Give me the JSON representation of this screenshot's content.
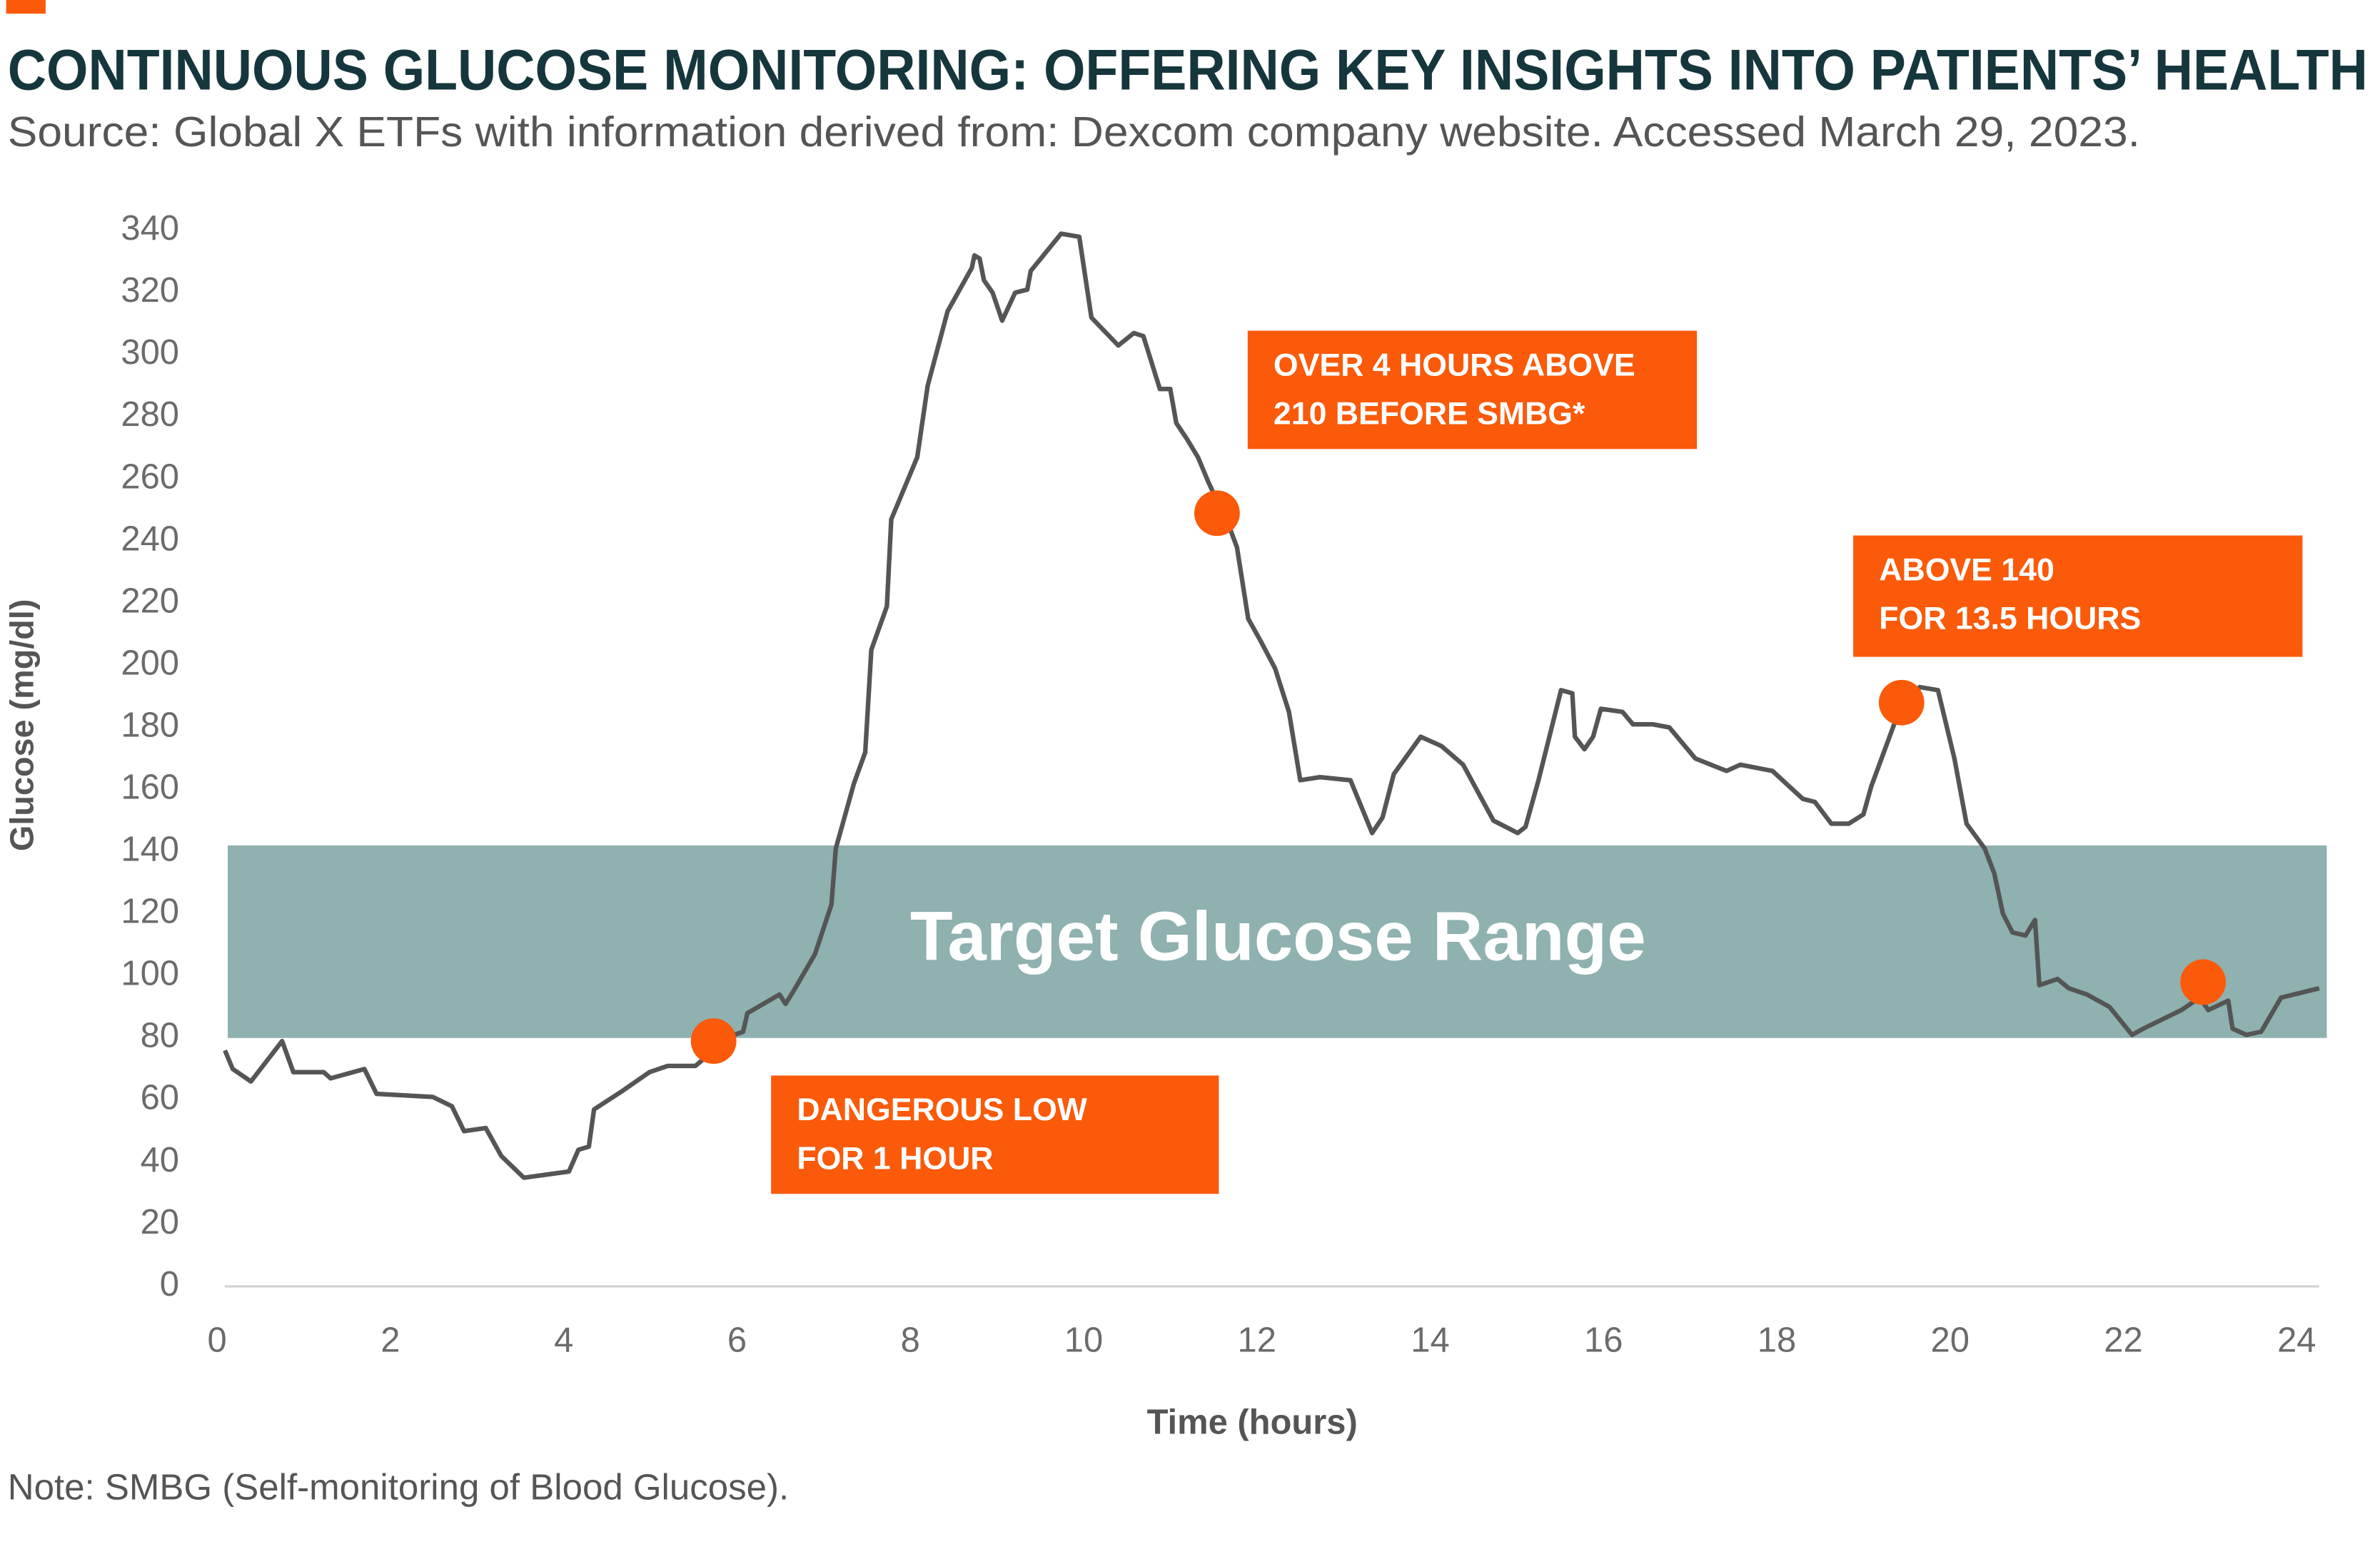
{
  "chart_data": {
    "type": "line",
    "title": "CONTINUOUS GLUCOSE MONITORING: OFFERING KEY INSIGHTS INTO PATIENTS’ HEALTH",
    "subtitle": "Source: Global X ETFs with information derived from: Dexcom company website. Accessed March 29, 2023.",
    "note": "Note: SMBG (Self-monitoring of Blood Glucose).",
    "x_label": "Time (hours)",
    "y_label": "Glucose (mg/dl)",
    "xlim": [
      0,
      24.26
    ],
    "ylim": [
      0,
      340
    ],
    "xticks": [
      0,
      2,
      4,
      6,
      8,
      10,
      12,
      14,
      16,
      18,
      20,
      22,
      24
    ],
    "yticks": [
      0,
      20,
      40,
      60,
      80,
      100,
      120,
      140,
      160,
      180,
      200,
      220,
      240,
      260,
      280,
      300,
      320,
      340
    ],
    "target_range": [
      80,
      142
    ],
    "target_label": "Target Glucose Range",
    "target_color": "#8fb1b0",
    "series": [
      {
        "color": "#555555",
        "x": [
          0.09,
          0.18,
          0.39,
          0.75,
          0.88,
          1.23,
          1.31,
          1.7,
          1.84,
          2.49,
          2.71,
          2.85,
          3.1,
          3.28,
          3.54,
          4.06,
          4.17,
          4.29,
          4.35,
          4.68,
          4.99,
          5.2,
          5.52,
          5.73,
          5.97,
          6.07,
          6.12,
          6.49,
          6.56,
          6.65,
          6.9,
          7.09,
          7.14,
          7.35,
          7.48,
          7.55,
          7.73,
          7.78,
          8.08,
          8.2,
          8.43,
          8.71,
          8.74,
          8.8,
          8.85,
          8.95,
          9.06,
          9.21,
          9.35,
          9.39,
          9.74,
          9.95,
          10.09,
          10.4,
          10.58,
          10.69,
          10.88,
          11.0,
          11.07,
          11.19,
          11.32,
          11.44,
          11.69,
          11.77,
          11.9,
          12.04,
          12.21,
          12.37,
          12.5,
          12.73,
          13.08,
          13.33,
          13.45,
          13.58,
          13.89,
          14.13,
          14.38,
          14.73,
          15.01,
          15.1,
          15.25,
          15.51,
          15.64,
          15.67,
          15.78,
          15.88,
          15.97,
          16.22,
          16.34,
          16.57,
          16.76,
          17.06,
          17.42,
          17.58,
          17.95,
          18.3,
          18.44,
          18.63,
          18.83,
          19.0,
          19.09,
          19.42,
          19.65,
          19.86,
          20.05,
          20.19,
          20.4,
          20.51,
          20.61,
          20.72,
          20.87,
          20.98,
          21.03,
          21.24,
          21.37,
          21.58,
          21.84,
          22.1,
          22.23,
          22.67,
          22.88,
          22.98,
          23.21,
          23.26,
          23.42,
          23.59,
          23.82,
          24.26
        ],
        "values": [
          76,
          70,
          66,
          79,
          69,
          69,
          67,
          70,
          62,
          61,
          58,
          50,
          51,
          42,
          35,
          37,
          44,
          45,
          57,
          63,
          69,
          71,
          71,
          76,
          81,
          82,
          88,
          94,
          91,
          95,
          107,
          123,
          141,
          162,
          172,
          205,
          219,
          247,
          267,
          290,
          314,
          328,
          332,
          331,
          324,
          320,
          311,
          320,
          321,
          327,
          339,
          338,
          312,
          303,
          307,
          306,
          289,
          289,
          278,
          273,
          267,
          259,
          244,
          238,
          215,
          208,
          199,
          185,
          163,
          164,
          163,
          146,
          151,
          165,
          177,
          174,
          168,
          150,
          146,
          148,
          163,
          192,
          191,
          177,
          173,
          177,
          186,
          185,
          181,
          181,
          180,
          170,
          166,
          168,
          166,
          157,
          156,
          149,
          149,
          152,
          161,
          186,
          193,
          192,
          170,
          149,
          141,
          133,
          120,
          114,
          113,
          118,
          97,
          99,
          96,
          94,
          90,
          81,
          83,
          89,
          93,
          89,
          92,
          83,
          81,
          82,
          93,
          96
        ]
      }
    ],
    "markers": {
      "color": "#fa5a0a",
      "x": [
        5.73,
        11.54,
        19.44,
        22.92
      ],
      "values": [
        79,
        249,
        188,
        98
      ]
    },
    "annotations": [
      {
        "lines": [
          "DANGEROUS LOW",
          "FOR 1 HOUR"
        ]
      },
      {
        "lines": [
          "OVER 4 HOURS ABOVE",
          "210 BEFORE SMBG*"
        ]
      },
      {
        "lines": [
          "ABOVE 140",
          "FOR 13.5 HOURS"
        ]
      }
    ],
    "annotation_color": "#fa5a0a"
  }
}
